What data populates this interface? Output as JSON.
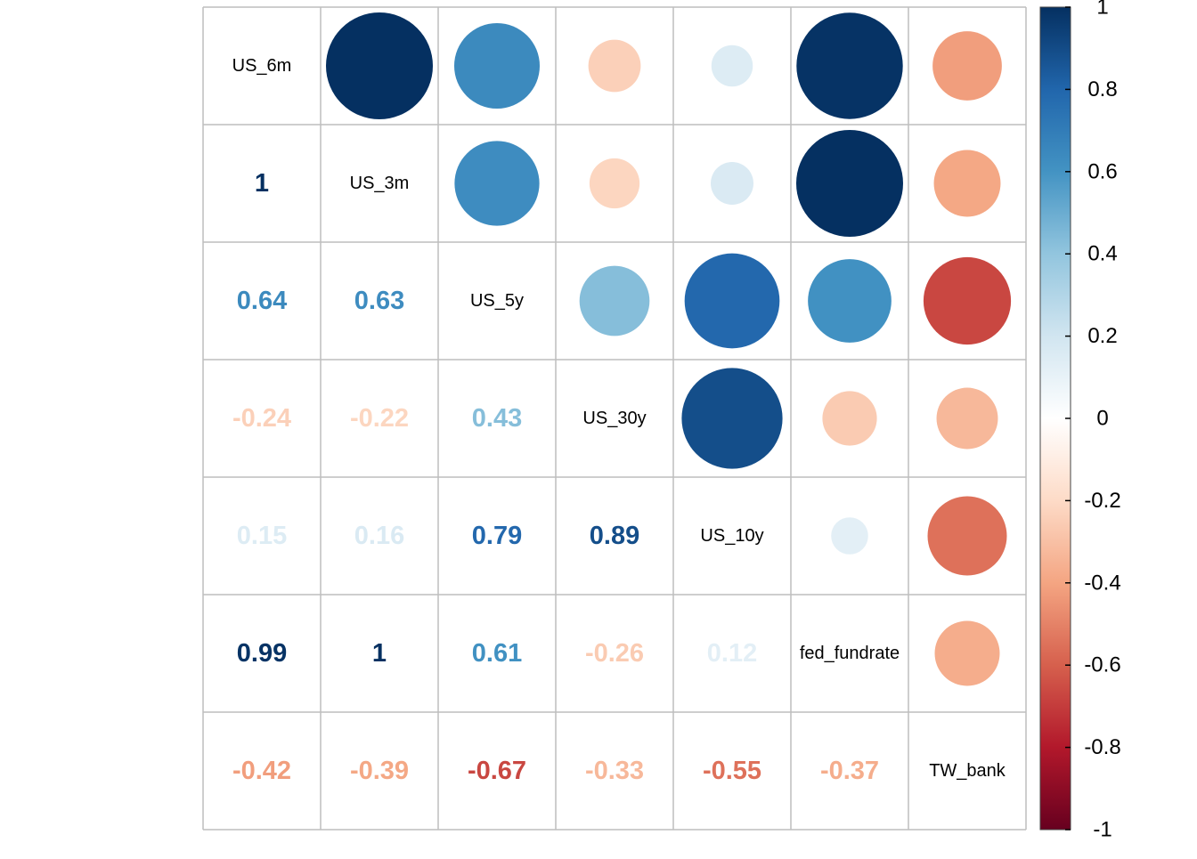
{
  "chart_data": {
    "type": "heatmap",
    "variables": [
      "US_6m",
      "US_3m",
      "US_5y",
      "US_30y",
      "US_10y",
      "fed_fundrate",
      "TW_bank"
    ],
    "matrix": [
      [
        1.0,
        1.0,
        0.64,
        -0.24,
        0.15,
        0.99,
        -0.42
      ],
      [
        1.0,
        1.0,
        0.63,
        -0.22,
        0.16,
        1.0,
        -0.39
      ],
      [
        0.64,
        0.63,
        1.0,
        0.43,
        0.79,
        0.61,
        -0.67
      ],
      [
        -0.24,
        -0.22,
        0.43,
        1.0,
        0.89,
        -0.26,
        -0.33
      ],
      [
        0.15,
        0.16,
        0.79,
        0.89,
        1.0,
        0.12,
        -0.55
      ],
      [
        0.99,
        1.0,
        0.61,
        -0.26,
        0.12,
        1.0,
        -0.37
      ],
      [
        -0.42,
        -0.39,
        -0.67,
        -0.33,
        -0.55,
        -0.37,
        1.0
      ]
    ],
    "lower_labels": [
      [],
      [
        "1"
      ],
      [
        "0.64",
        "0.63"
      ],
      [
        "-0.24",
        "-0.22",
        "0.43"
      ],
      [
        "0.15",
        "0.16",
        "0.79",
        "0.89"
      ],
      [
        "0.99",
        "1",
        "0.61",
        "-0.26",
        "0.12"
      ],
      [
        "-0.42",
        "-0.39",
        "-0.67",
        "-0.33",
        "-0.55",
        "-0.37"
      ]
    ],
    "upper": "circle",
    "lower": "number",
    "diagonal": "variable names",
    "colorbar": {
      "range": [
        -1,
        1
      ],
      "ticks": [
        "1",
        "0.8",
        "0.6",
        "0.4",
        "0.2",
        "0",
        "-0.2",
        "-0.4",
        "-0.6",
        "-0.8",
        "-1"
      ],
      "palette": [
        "#67001F",
        "#B2182B",
        "#D6604D",
        "#F4A582",
        "#FDDBC7",
        "#FFFFFF",
        "#D1E5F0",
        "#92C5DE",
        "#4393C3",
        "#2166AC",
        "#053061"
      ]
    },
    "grid_color": "#BEBEBE"
  }
}
